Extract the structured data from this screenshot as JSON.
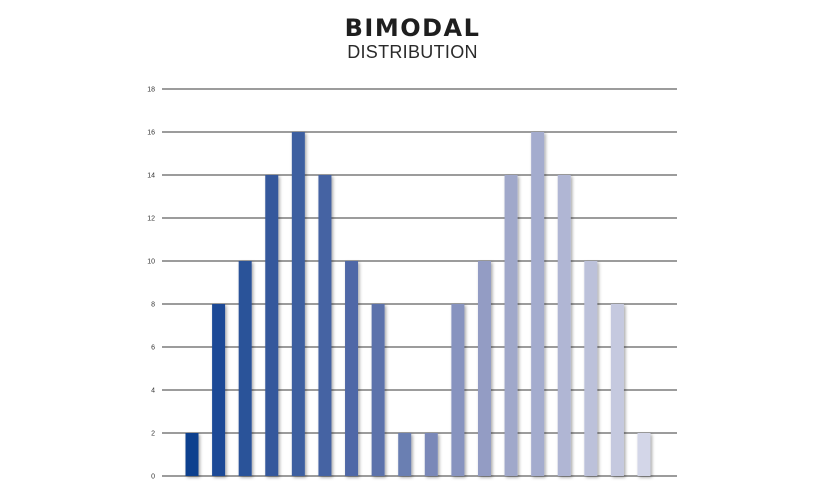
{
  "chart_data": {
    "type": "bar",
    "title": "BIMODAL",
    "subtitle": "DISTRIBUTION",
    "xlabel": "",
    "ylabel": "",
    "ylim": [
      0,
      18
    ],
    "yticks": [
      0,
      2,
      4,
      6,
      8,
      10,
      12,
      14,
      16,
      18
    ],
    "grid": true,
    "legend": "none",
    "values": [
      2,
      8,
      10,
      14,
      16,
      14,
      10,
      8,
      2,
      2,
      8,
      10,
      14,
      16,
      14,
      10,
      8,
      2
    ],
    "colors": [
      "#0e3f8e",
      "#1c4a96",
      "#2a5299",
      "#34589c",
      "#3c5ea0",
      "#4563a3",
      "#5068a7",
      "#5b72ab",
      "#6b7fb2",
      "#7a88b8",
      "#8793bf",
      "#939cc4",
      "#a0a8ca",
      "#a4acce",
      "#b0b6d4",
      "#bcc1da",
      "#c5c9df",
      "#d3d6e8"
    ]
  }
}
